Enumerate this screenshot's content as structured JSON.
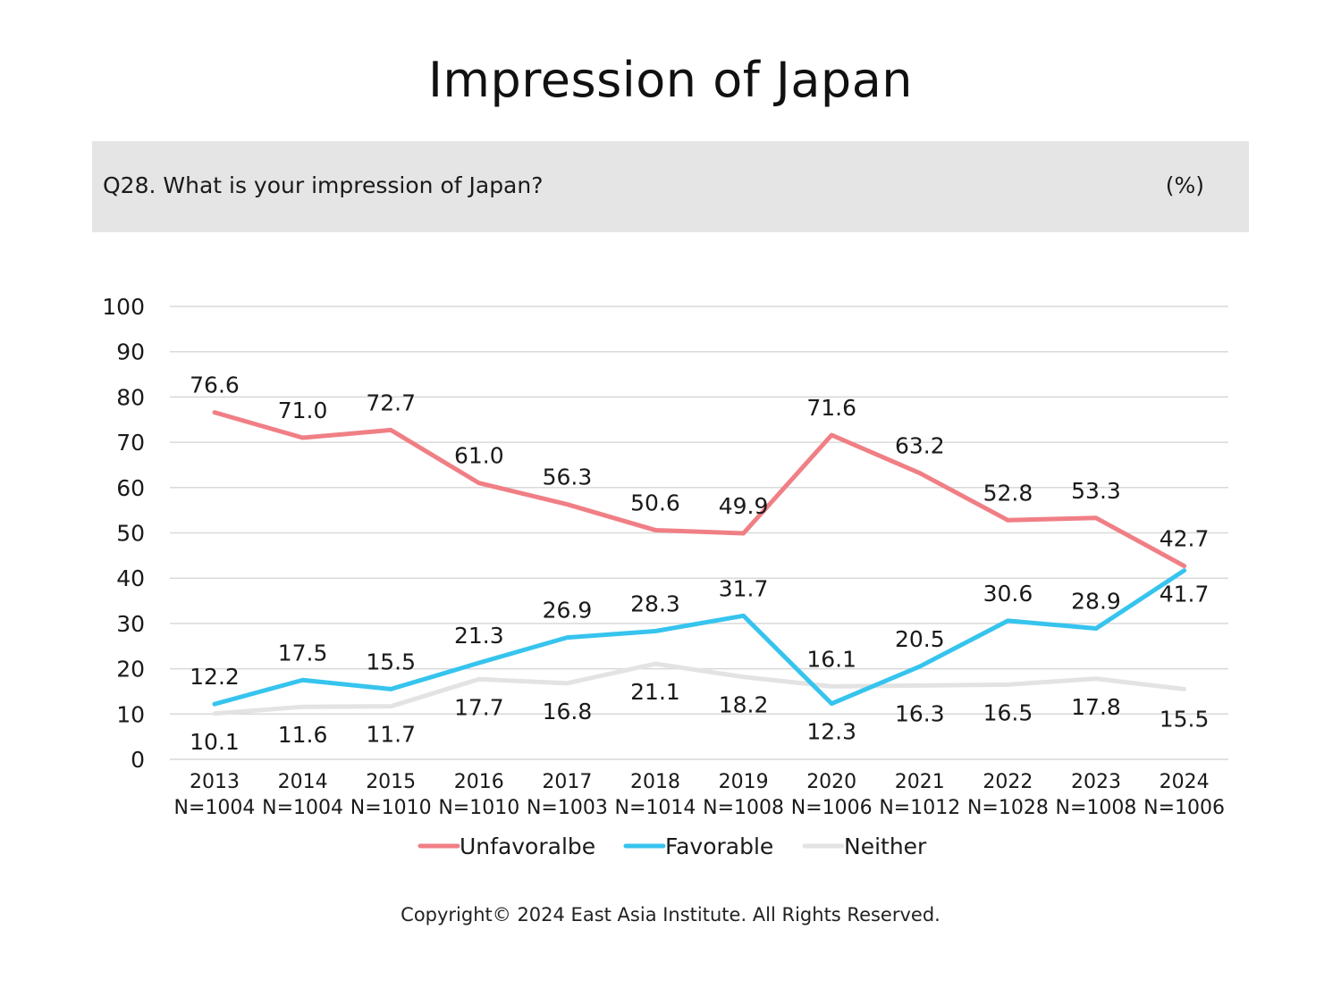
{
  "page": {
    "title": "Impression of Japan",
    "question": "Q28. What is your impression of Japan?",
    "unit": "(%)",
    "copyright": "Copyright© 2024 East Asia Institute. All Rights Reserved."
  },
  "chart_data": {
    "type": "line",
    "title": "Impression of Japan",
    "categories": [
      "2013",
      "2014",
      "2015",
      "2016",
      "2017",
      "2018",
      "2019",
      "2020",
      "2021",
      "2022",
      "2023",
      "2024"
    ],
    "category_sublabels": [
      "N=1004",
      "N=1004",
      "N=1010",
      "N=1010",
      "N=1003",
      "N=1014",
      "N=1008",
      "N=1006",
      "N=1012",
      "N=1028",
      "N=1008",
      "N=1006"
    ],
    "ylim": [
      0,
      100
    ],
    "yticks": [
      0,
      10,
      20,
      30,
      40,
      50,
      60,
      70,
      80,
      90,
      100
    ],
    "grid": true,
    "legend_position": "bottom",
    "series": [
      {
        "name": "Unfavoralbe",
        "color": "#f07f85",
        "values": [
          76.6,
          71.0,
          72.7,
          61.0,
          56.3,
          50.6,
          49.9,
          71.6,
          63.2,
          52.8,
          53.3,
          42.7
        ],
        "labels": [
          "76.6",
          "71.0",
          "72.7",
          "61.0",
          "56.3",
          "50.6",
          "49.9",
          "71.6",
          "63.2",
          "52.8",
          "53.3",
          "42.7"
        ]
      },
      {
        "name": "Favorable",
        "color": "#36c4ee",
        "values": [
          12.2,
          17.5,
          15.5,
          21.3,
          26.9,
          28.3,
          31.7,
          12.3,
          20.5,
          30.6,
          28.9,
          41.7
        ],
        "labels": [
          "12.2",
          "17.5",
          "15.5",
          "21.3",
          "26.9",
          "28.3",
          "31.7",
          "12.3",
          "20.5",
          "30.6",
          "28.9",
          "41.7"
        ]
      },
      {
        "name": "Neither",
        "color": "#e3e3e3",
        "values": [
          10.1,
          11.6,
          11.7,
          17.7,
          16.8,
          21.1,
          18.2,
          16.1,
          16.3,
          16.5,
          17.8,
          15.5
        ],
        "labels": [
          "10.1",
          "11.6",
          "11.7",
          "17.7",
          "16.8",
          "21.1",
          "18.2",
          "16.1",
          "16.3",
          "16.5",
          "17.8",
          "15.5"
        ]
      }
    ]
  }
}
